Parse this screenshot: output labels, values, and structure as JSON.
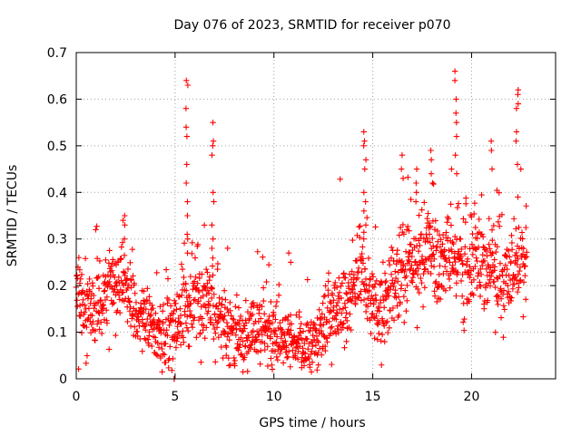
{
  "chart_data": {
    "type": "scatter",
    "title": "Day 076 of 2023, SRMTID for receiver p070",
    "xlabel": "GPS time / hours",
    "ylabel": "SRMTID / TECUs",
    "xlim": [
      0,
      24.25
    ],
    "ylim": [
      0,
      0.7
    ],
    "xticks": [
      0,
      5,
      10,
      15,
      20
    ],
    "yticks": [
      0,
      0.1,
      0.2,
      0.3,
      0.4,
      0.5,
      0.6,
      0.7
    ],
    "xtick_labels": [
      "0",
      "5",
      "10",
      "15",
      "20"
    ],
    "ytick_labels": [
      "0",
      "0.1",
      "0.2",
      "0.3",
      "0.4",
      "0.5",
      "0.6",
      "0.7"
    ],
    "grid": true,
    "marker": "plus",
    "color": "#ff0000",
    "series": [
      {
        "name": "SRMTID",
        "profile_x": [
          0.0,
          0.5,
          1.0,
          1.5,
          2.0,
          2.5,
          3.0,
          3.5,
          4.0,
          4.5,
          5.0,
          5.5,
          6.0,
          6.5,
          7.0,
          7.5,
          8.0,
          8.5,
          9.0,
          9.5,
          10.0,
          10.5,
          11.0,
          11.5,
          12.0,
          12.5,
          13.0,
          13.5,
          14.0,
          14.5,
          15.0,
          15.5,
          16.0,
          16.5,
          17.0,
          17.5,
          18.0,
          18.5,
          19.0,
          19.5,
          20.0,
          20.5,
          21.0,
          21.5,
          22.0,
          22.5,
          22.8
        ],
        "profile_y": [
          0.2,
          0.13,
          0.16,
          0.18,
          0.19,
          0.22,
          0.14,
          0.12,
          0.11,
          0.1,
          0.11,
          0.15,
          0.16,
          0.15,
          0.14,
          0.12,
          0.1,
          0.09,
          0.1,
          0.1,
          0.09,
          0.08,
          0.07,
          0.06,
          0.08,
          0.11,
          0.14,
          0.16,
          0.19,
          0.24,
          0.14,
          0.15,
          0.19,
          0.22,
          0.25,
          0.26,
          0.27,
          0.24,
          0.25,
          0.24,
          0.23,
          0.25,
          0.22,
          0.2,
          0.21,
          0.24,
          0.25
        ],
        "spread": 0.045,
        "count": 1600,
        "bursts": [
          {
            "x": 5.6,
            "y": [
              0.64,
              0.63,
              0.58,
              0.54,
              0.52,
              0.46,
              0.42,
              0.38,
              0.35,
              0.31,
              0.3,
              0.27
            ]
          },
          {
            "x": 6.9,
            "y": [
              0.55,
              0.51,
              0.5,
              0.48,
              0.4,
              0.38,
              0.33,
              0.3,
              0.28
            ]
          },
          {
            "x": 2.4,
            "y": [
              0.35,
              0.34,
              0.33,
              0.3
            ]
          },
          {
            "x": 14.6,
            "y": [
              0.53,
              0.51,
              0.5,
              0.47,
              0.45,
              0.4,
              0.38,
              0.36,
              0.33,
              0.3
            ]
          },
          {
            "x": 19.2,
            "y": [
              0.66,
              0.64,
              0.6,
              0.57,
              0.55,
              0.52,
              0.48,
              0.44
            ]
          },
          {
            "x": 22.3,
            "y": [
              0.62,
              0.61,
              0.59,
              0.58,
              0.53,
              0.51,
              0.46,
              0.39
            ]
          },
          {
            "x": 21.0,
            "y": [
              0.51,
              0.49,
              0.45
            ]
          },
          {
            "x": 16.5,
            "y": [
              0.48,
              0.45,
              0.43
            ]
          },
          {
            "x": 18.0,
            "y": [
              0.49,
              0.47,
              0.44,
              0.42
            ]
          },
          {
            "x": 17.2,
            "y": [
              0.45,
              0.42,
              0.4,
              0.38
            ]
          },
          {
            "x": 10.8,
            "y": [
              0.27,
              0.25
            ]
          },
          {
            "x": 5.0,
            "y": [
              0.0,
              0.0
            ]
          }
        ]
      }
    ]
  }
}
